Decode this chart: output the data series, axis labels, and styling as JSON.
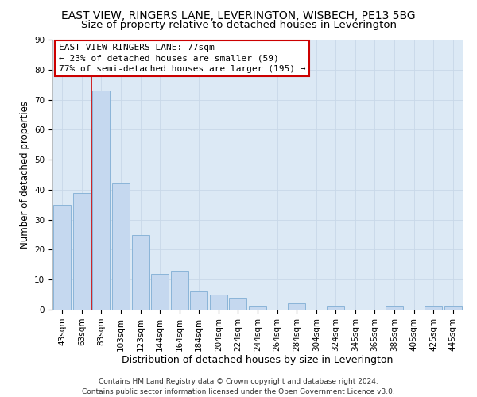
{
  "title1": "EAST VIEW, RINGERS LANE, LEVERINGTON, WISBECH, PE13 5BG",
  "title2": "Size of property relative to detached houses in Leverington",
  "xlabel": "Distribution of detached houses by size in Leverington",
  "ylabel": "Number of detached properties",
  "categories": [
    "43sqm",
    "63sqm",
    "83sqm",
    "103sqm",
    "123sqm",
    "144sqm",
    "164sqm",
    "184sqm",
    "204sqm",
    "224sqm",
    "244sqm",
    "264sqm",
    "284sqm",
    "304sqm",
    "324sqm",
    "345sqm",
    "365sqm",
    "385sqm",
    "405sqm",
    "425sqm",
    "445sqm"
  ],
  "values": [
    35,
    39,
    73,
    42,
    25,
    12,
    13,
    6,
    5,
    4,
    1,
    0,
    2,
    0,
    1,
    0,
    0,
    1,
    0,
    1,
    1
  ],
  "bar_color": "#c5d8ef",
  "bar_edge_color": "#8ab4d8",
  "vline_x": 1.5,
  "vline_color": "#cc0000",
  "annotation_title": "EAST VIEW RINGERS LANE: 77sqm",
  "annotation_line1": "← 23% of detached houses are smaller (59)",
  "annotation_line2": "77% of semi-detached houses are larger (195) →",
  "annotation_box_color": "#ffffff",
  "annotation_box_edge": "#cc0000",
  "ylim": [
    0,
    90
  ],
  "yticks": [
    0,
    10,
    20,
    30,
    40,
    50,
    60,
    70,
    80,
    90
  ],
  "grid_color": "#c8d8e8",
  "bg_color": "#dce9f5",
  "footer": "Contains HM Land Registry data © Crown copyright and database right 2024.\nContains public sector information licensed under the Open Government Licence v3.0.",
  "title1_fontsize": 10,
  "title2_fontsize": 9.5,
  "xlabel_fontsize": 9,
  "ylabel_fontsize": 8.5,
  "tick_fontsize": 7.5,
  "annotation_fontsize": 8,
  "footer_fontsize": 6.5
}
